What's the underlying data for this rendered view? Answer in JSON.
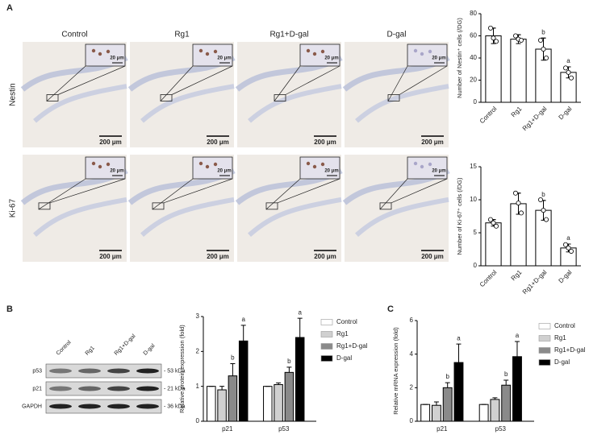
{
  "panels": [
    "A",
    "B",
    "C"
  ],
  "micrographs": {
    "columns": [
      "Control",
      "Rg1",
      "Rg1+D-gal",
      "D-gal"
    ],
    "rows": [
      "Nestin",
      "Ki-67"
    ],
    "scale_bar": "200 μm",
    "inset_scale_bar": "20 μm"
  },
  "blot": {
    "lanes": [
      "Control",
      "Rg1",
      "Rg1+D-gal",
      "D-gal"
    ],
    "bands": [
      "p53",
      "p21",
      "GAPDH"
    ],
    "sizes": [
      "- 53 kDa",
      "- 21 kDa",
      "- 36 kDa"
    ]
  },
  "chart_data": [
    {
      "type": "bar",
      "ylabel": "Number of Nestin⁺ cells (/DG)",
      "categories": [
        "Control",
        "Rg1",
        "Rg1+D-gal",
        "D-gal"
      ],
      "values": [
        60,
        57,
        48,
        27
      ],
      "errors": [
        7,
        4,
        10,
        5
      ],
      "letters": [
        null,
        null,
        "b",
        "a"
      ],
      "points": [
        [
          67,
          58,
          55
        ],
        [
          60,
          57,
          56
        ],
        [
          56,
          48,
          40
        ],
        [
          31,
          27,
          22
        ]
      ],
      "color": "#ffffff",
      "error_bars": "both",
      "ylim": [
        0,
        80
      ],
      "yticks": [
        0,
        20,
        40,
        60,
        80
      ]
    },
    {
      "type": "bar",
      "ylabel": "Number of Ki-67⁺ cells (/DG)",
      "categories": [
        "Control",
        "Rg1",
        "Rg1+D-gal",
        "D-gal"
      ],
      "values": [
        6.5,
        9.4,
        8.4,
        2.7
      ],
      "errors": [
        0.5,
        1.6,
        1.5,
        0.6
      ],
      "letters": [
        null,
        null,
        "b",
        "a"
      ],
      "points": [
        [
          7,
          6.5,
          6
        ],
        [
          11,
          9.5,
          8
        ],
        [
          10,
          8.4,
          7
        ],
        [
          3.2,
          2.7,
          2.2
        ]
      ],
      "color": "#ffffff",
      "error_bars": "both",
      "ylim": [
        0,
        15
      ],
      "yticks": [
        0,
        5,
        10,
        15
      ]
    },
    {
      "type": "bar",
      "ylabel": "Relative protein expression (fold)",
      "categories": [
        "p21",
        "p53"
      ],
      "error_bars": "up",
      "legend": "right",
      "series": [
        {
          "name": "Control",
          "color": "#ffffff",
          "values": [
            1.0,
            1.0
          ],
          "errors": [
            0,
            0
          ]
        },
        {
          "name": "Rg1",
          "color": "#d0d0d0",
          "values": [
            0.9,
            1.05
          ],
          "errors": [
            0.1,
            0.05
          ]
        },
        {
          "name": "Rg1+D-gal",
          "color": "#8a8a8a",
          "values": [
            1.3,
            1.4
          ],
          "errors": [
            0.35,
            0.15
          ],
          "letters": [
            "b",
            "b"
          ]
        },
        {
          "name": "D-gal",
          "color": "#000000",
          "values": [
            2.3,
            2.4
          ],
          "errors": [
            0.45,
            0.55
          ],
          "letters": [
            "a",
            "a"
          ]
        }
      ],
      "ylim": [
        0,
        3
      ],
      "yticks": [
        0,
        1,
        2,
        3
      ]
    },
    {
      "type": "bar",
      "ylabel": "Relative mRNA expression (fold)",
      "categories": [
        "p21",
        "p53"
      ],
      "error_bars": "up",
      "legend": "right",
      "series": [
        {
          "name": "Control",
          "color": "#ffffff",
          "values": [
            1.0,
            1.0
          ],
          "errors": [
            0,
            0
          ]
        },
        {
          "name": "Rg1",
          "color": "#d0d0d0",
          "values": [
            0.95,
            1.3
          ],
          "errors": [
            0.2,
            0.1
          ]
        },
        {
          "name": "Rg1+D-gal",
          "color": "#8a8a8a",
          "values": [
            2.0,
            2.15
          ],
          "errors": [
            0.3,
            0.3
          ],
          "letters": [
            "b",
            "b"
          ]
        },
        {
          "name": "D-gal",
          "color": "#000000",
          "values": [
            3.5,
            3.85
          ],
          "errors": [
            1.1,
            0.9
          ],
          "letters": [
            "a",
            "a"
          ]
        }
      ],
      "ylim": [
        0,
        6
      ],
      "yticks": [
        0,
        2,
        4,
        6
      ]
    }
  ]
}
